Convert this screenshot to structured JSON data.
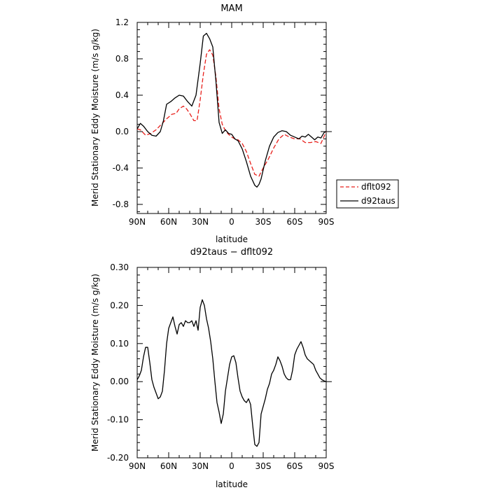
{
  "chart_data": [
    {
      "type": "line",
      "title": "MAM",
      "xlabel": "latitude",
      "ylabel": "Merid Stationary Eddy Moisture (m/s g/kg)",
      "xlim": [
        90,
        -90
      ],
      "ylim": [
        -0.9,
        1.2
      ],
      "x_ticks": [
        90,
        60,
        30,
        0,
        -30,
        -60,
        -90
      ],
      "x_tick_labels": [
        "90N",
        "60N",
        "30N",
        "0",
        "30S",
        "60S",
        "90S"
      ],
      "y_ticks": [
        1.2,
        0.8,
        0.4,
        0.0,
        -0.4,
        -0.8
      ],
      "y_tick_labels": [
        "1.2",
        "0.8",
        "0.4",
        "0.0",
        "-0.4",
        "-0.8"
      ],
      "grid": false,
      "legend": "outside-right",
      "series": [
        {
          "name": "dflt092",
          "color": "#e8201c",
          "style": "dashed",
          "x": [
            90,
            87,
            82,
            77,
            72,
            67,
            62,
            57,
            53,
            50,
            46,
            43,
            40,
            36,
            33,
            30,
            27,
            24,
            21,
            18,
            15,
            12,
            9,
            6,
            3,
            0,
            -3,
            -6,
            -10,
            -14,
            -18,
            -22,
            -26,
            -30,
            -35,
            -40,
            -45,
            -50,
            -55,
            -60,
            -65,
            -70,
            -75,
            -80,
            -85,
            -90
          ],
          "y": [
            0.03,
            0.02,
            -0.04,
            -0.02,
            0.02,
            0.08,
            0.14,
            0.19,
            0.2,
            0.25,
            0.28,
            0.25,
            0.2,
            0.12,
            0.12,
            0.35,
            0.63,
            0.85,
            0.9,
            0.84,
            0.6,
            0.25,
            0.08,
            0.01,
            -0.03,
            -0.06,
            -0.08,
            -0.09,
            -0.13,
            -0.22,
            -0.35,
            -0.47,
            -0.49,
            -0.4,
            -0.3,
            -0.18,
            -0.08,
            -0.03,
            -0.06,
            -0.08,
            -0.08,
            -0.12,
            -0.12,
            -0.11,
            -0.13,
            0.0
          ]
        },
        {
          "name": "d92taus",
          "color": "#000000",
          "style": "solid",
          "x": [
            90,
            87,
            84,
            80,
            76,
            72,
            68,
            65,
            62,
            58,
            54,
            50,
            46,
            42,
            38,
            34,
            30,
            27,
            24,
            21,
            18,
            15,
            12,
            9,
            6,
            3,
            0,
            -3,
            -6,
            -10,
            -14,
            -18,
            -22,
            -24,
            -26,
            -28,
            -32,
            -36,
            -40,
            -44,
            -48,
            -52,
            -56,
            -60,
            -64,
            -67,
            -70,
            -73,
            -76,
            -79,
            -82,
            -85,
            -88,
            -90
          ],
          "y": [
            0.03,
            0.09,
            0.06,
            0.0,
            -0.04,
            -0.05,
            0.0,
            0.12,
            0.3,
            0.33,
            0.37,
            0.4,
            0.39,
            0.33,
            0.28,
            0.4,
            0.75,
            1.05,
            1.08,
            1.02,
            0.93,
            0.55,
            0.1,
            -0.02,
            0.02,
            -0.02,
            -0.03,
            -0.08,
            -0.1,
            -0.19,
            -0.33,
            -0.49,
            -0.59,
            -0.61,
            -0.58,
            -0.52,
            -0.32,
            -0.16,
            -0.06,
            -0.01,
            0.01,
            0.0,
            -0.04,
            -0.06,
            -0.08,
            -0.05,
            -0.06,
            -0.03,
            -0.06,
            -0.09,
            -0.06,
            -0.07,
            -0.01,
            0.0
          ]
        }
      ]
    },
    {
      "type": "line",
      "title": "d92taus − dflt092",
      "xlabel": "latitude",
      "ylabel": "Merid Stationary Eddy Moisture (m/s g/kg)",
      "xlim": [
        90,
        -90
      ],
      "ylim": [
        -0.2,
        0.3
      ],
      "x_ticks": [
        90,
        60,
        30,
        0,
        -30,
        -60,
        -90
      ],
      "x_tick_labels": [
        "90N",
        "60N",
        "30N",
        "0",
        "30S",
        "60S",
        "90S"
      ],
      "y_ticks": [
        0.3,
        0.2,
        0.1,
        0.0,
        -0.1,
        -0.2
      ],
      "y_tick_labels": [
        "0.30",
        "0.20",
        "0.10",
        "0.00",
        "-0.10",
        "-0.20"
      ],
      "grid": false,
      "series": [
        {
          "name": "",
          "color": "#000000",
          "style": "solid",
          "x": [
            90,
            88,
            86,
            84,
            82,
            80,
            78,
            76,
            74,
            72,
            70,
            68,
            66,
            64,
            62,
            60,
            58,
            56,
            54,
            52,
            50,
            48,
            46,
            44,
            42,
            40,
            38,
            36,
            34,
            32,
            30,
            28,
            26,
            24,
            22,
            20,
            18,
            16,
            14,
            12,
            10,
            8,
            6,
            4,
            2,
            0,
            -2,
            -4,
            -6,
            -8,
            -10,
            -12,
            -14,
            -16,
            -18,
            -20,
            -22,
            -24,
            -26,
            -28,
            -30,
            -32,
            -34,
            -36,
            -38,
            -40,
            -42,
            -44,
            -46,
            -48,
            -50,
            -52,
            -54,
            -56,
            -58,
            -60,
            -62,
            -64,
            -66,
            -68,
            -70,
            -72,
            -74,
            -76,
            -78,
            -80,
            -82,
            -84,
            -86,
            -88,
            -90
          ],
          "y": [
            0.005,
            0.015,
            0.03,
            0.065,
            0.09,
            0.09,
            0.05,
            0.005,
            -0.015,
            -0.03,
            -0.045,
            -0.04,
            -0.025,
            0.03,
            0.1,
            0.14,
            0.155,
            0.17,
            0.145,
            0.125,
            0.15,
            0.155,
            0.145,
            0.16,
            0.155,
            0.155,
            0.16,
            0.145,
            0.16,
            0.135,
            0.195,
            0.215,
            0.2,
            0.165,
            0.14,
            0.105,
            0.06,
            0.0,
            -0.055,
            -0.08,
            -0.11,
            -0.085,
            -0.025,
            0.01,
            0.045,
            0.065,
            0.068,
            0.05,
            0.01,
            -0.025,
            -0.04,
            -0.05,
            -0.055,
            -0.045,
            -0.06,
            -0.115,
            -0.165,
            -0.17,
            -0.16,
            -0.085,
            -0.065,
            -0.045,
            -0.02,
            -0.005,
            0.02,
            0.03,
            0.045,
            0.065,
            0.055,
            0.04,
            0.02,
            0.01,
            0.005,
            0.005,
            0.03,
            0.07,
            0.085,
            0.095,
            0.105,
            0.09,
            0.07,
            0.06,
            0.055,
            0.05,
            0.045,
            0.03,
            0.02,
            0.01,
            0.005,
            0.002,
            0.0
          ]
        }
      ]
    }
  ]
}
